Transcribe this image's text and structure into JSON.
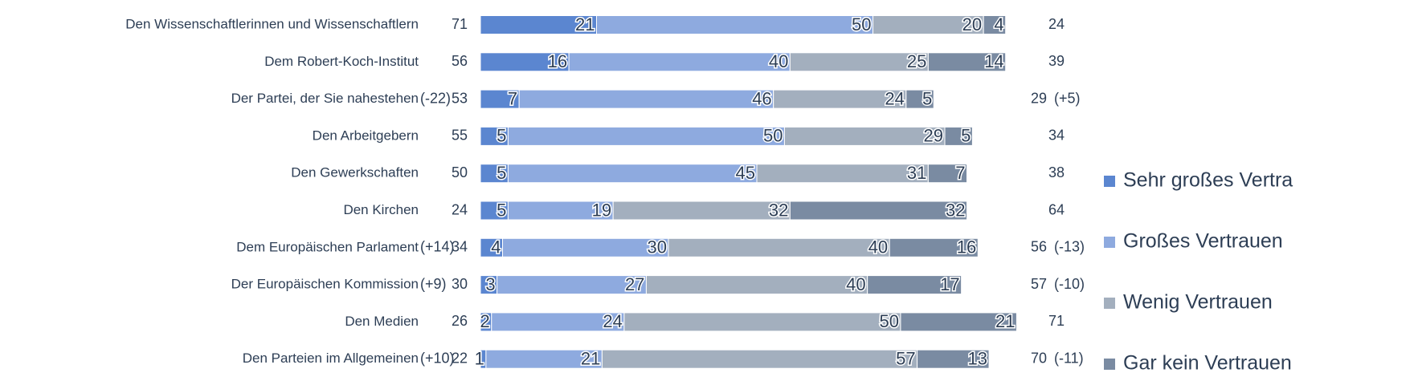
{
  "chart_data": {
    "type": "bar",
    "orientation": "horizontal",
    "stacked": true,
    "categories": [
      "Den Wissenschaftlerinnen und Wissenschaftlern",
      "Dem Robert-Koch-Institut",
      "Der Partei, der Sie nahestehen",
      "Den Arbeitgebern",
      "Den Gewerkschaften",
      "Den Kirchen",
      "Dem Europäischen Parlament",
      "Der Europäischen Kommission",
      "Den Medien",
      "Den Parteien im Allgemeinen"
    ],
    "series": [
      {
        "name": "Sehr großes Vertra",
        "color": "#5b86d0",
        "values": [
          21,
          16,
          7,
          5,
          5,
          5,
          4,
          3,
          2,
          1
        ]
      },
      {
        "name": "Großes Vertrauen",
        "color": "#8eaadf",
        "values": [
          50,
          40,
          46,
          50,
          45,
          19,
          30,
          27,
          24,
          21
        ]
      },
      {
        "name": "Wenig Vertrauen",
        "color": "#a3afbe",
        "values": [
          20,
          25,
          24,
          29,
          31,
          32,
          40,
          40,
          50,
          57
        ]
      },
      {
        "name": "Gar kein Vertrauen",
        "color": "#7a8ba2",
        "values": [
          4,
          14,
          5,
          5,
          7,
          32,
          16,
          17,
          21,
          13
        ]
      }
    ],
    "left_totals": [
      71,
      56,
      53,
      55,
      50,
      24,
      34,
      30,
      26,
      22
    ],
    "left_changes": {
      "values": [
        null,
        null,
        -22,
        null,
        null,
        null,
        14,
        9,
        null,
        10
      ],
      "value_labels": [
        null,
        null,
        "(-22)",
        null,
        null,
        null,
        "(+14)",
        "(+9)",
        null,
        "(+10)"
      ]
    },
    "right_totals": [
      24,
      39,
      29,
      34,
      38,
      64,
      56,
      57,
      71,
      70
    ],
    "right_changes": {
      "values": [
        null,
        null,
        5,
        null,
        null,
        null,
        -13,
        -10,
        null,
        -11
      ],
      "value_labels": [
        null,
        null,
        "(+5)",
        null,
        null,
        null,
        "(-13)",
        "(-10)",
        null,
        "(-11)"
      ]
    },
    "legend": "right"
  }
}
